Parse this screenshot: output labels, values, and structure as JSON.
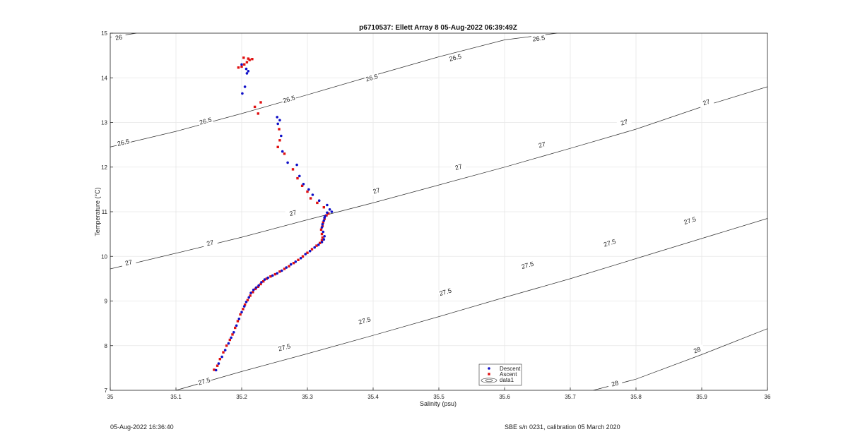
{
  "chart_data": {
    "type": "scatter",
    "title": "p6710537: Ellett Array 8 05-Aug-2022 06:39:49Z",
    "xlabel": "Salinity (psu)",
    "ylabel": "Temperature (°C)",
    "xlim": [
      35,
      36
    ],
    "ylim": [
      7,
      15
    ],
    "x_ticks": [
      "35",
      "35.1",
      "35.2",
      "35.3",
      "35.4",
      "35.5",
      "35.6",
      "35.7",
      "35.8",
      "35.9",
      "36"
    ],
    "y_ticks": [
      "7",
      "8",
      "9",
      "10",
      "11",
      "12",
      "13",
      "14",
      "15"
    ],
    "grid": true,
    "legend": {
      "placement": "bottom-center",
      "entries": [
        "Descent",
        "Ascent",
        "data1"
      ]
    },
    "contours": [
      {
        "level": "26",
        "line": [
          [
            35.0,
            14.91
          ],
          [
            35.04,
            15.0
          ]
        ],
        "labels": [
          [
            35.013,
            14.9
          ]
        ]
      },
      {
        "level": "26.5",
        "line": [
          [
            35.0,
            12.45
          ],
          [
            35.1,
            12.8
          ],
          [
            35.2,
            13.2
          ],
          [
            35.3,
            13.62
          ],
          [
            35.4,
            14.05
          ],
          [
            35.5,
            14.47
          ],
          [
            35.6,
            14.85
          ],
          [
            35.68,
            15.0
          ]
        ],
        "labels": [
          [
            35.02,
            12.55
          ],
          [
            35.145,
            13.03
          ],
          [
            35.272,
            13.52
          ],
          [
            35.398,
            14.0
          ],
          [
            35.525,
            14.45
          ],
          [
            35.652,
            14.88
          ]
        ]
      },
      {
        "level": "27",
        "line": [
          [
            35.0,
            9.72
          ],
          [
            35.1,
            10.07
          ],
          [
            35.2,
            10.43
          ],
          [
            35.3,
            10.82
          ],
          [
            35.4,
            11.2
          ],
          [
            35.5,
            11.6
          ],
          [
            35.6,
            12.0
          ],
          [
            35.7,
            12.42
          ],
          [
            35.8,
            12.85
          ],
          [
            35.9,
            13.35
          ],
          [
            36.0,
            13.8
          ]
        ],
        "labels": [
          [
            35.028,
            9.86
          ],
          [
            35.152,
            10.3
          ],
          [
            35.278,
            10.97
          ],
          [
            35.405,
            11.47
          ],
          [
            35.53,
            12.0
          ],
          [
            35.657,
            12.5
          ],
          [
            35.782,
            13.0
          ],
          [
            35.907,
            13.45
          ]
        ]
      },
      {
        "level": "27.5",
        "line": [
          [
            35.1,
            7.0
          ],
          [
            35.2,
            7.42
          ],
          [
            35.3,
            7.82
          ],
          [
            35.4,
            8.23
          ],
          [
            35.5,
            8.65
          ],
          [
            35.6,
            9.08
          ],
          [
            35.7,
            9.5
          ],
          [
            35.8,
            9.95
          ],
          [
            35.9,
            10.4
          ],
          [
            36.0,
            10.85
          ]
        ],
        "labels": [
          [
            35.143,
            7.2
          ],
          [
            35.265,
            7.96
          ],
          [
            35.387,
            8.56
          ],
          [
            35.51,
            9.2
          ],
          [
            35.635,
            9.8
          ],
          [
            35.76,
            10.3
          ],
          [
            35.882,
            10.8
          ]
        ]
      },
      {
        "level": "28",
        "line": [
          [
            35.735,
            7.0
          ],
          [
            35.8,
            7.25
          ],
          [
            35.9,
            7.8
          ],
          [
            36.0,
            8.38
          ]
        ],
        "labels": [
          [
            35.768,
            7.15
          ],
          [
            35.893,
            7.9
          ]
        ]
      }
    ],
    "series": [
      {
        "name": "Descent",
        "color": "#1010c8",
        "x": [
          35.161,
          35.165,
          35.17,
          35.175,
          35.18,
          35.184,
          35.188,
          35.192,
          35.196,
          35.2,
          35.204,
          35.207,
          35.211,
          35.214,
          35.218,
          35.222,
          35.226,
          35.23,
          35.235,
          35.24,
          35.247,
          35.254,
          35.261,
          35.268,
          35.275,
          35.282,
          35.29,
          35.297,
          35.304,
          35.311,
          35.317,
          35.322,
          35.325,
          35.326,
          35.324,
          35.322,
          35.323,
          35.325,
          35.326,
          35.327,
          35.33,
          35.334,
          35.337,
          35.33,
          35.318,
          35.308,
          35.302,
          35.294,
          35.288,
          35.284,
          35.27,
          35.262,
          35.26,
          35.255,
          35.258,
          35.254,
          35.208,
          35.21,
          35.207,
          35.205,
          35.201,
          35.2
        ],
        "y": [
          7.45,
          7.6,
          7.75,
          7.9,
          8.05,
          8.18,
          8.3,
          8.45,
          8.6,
          8.75,
          8.88,
          8.98,
          9.08,
          9.18,
          9.25,
          9.3,
          9.35,
          9.42,
          9.48,
          9.52,
          9.57,
          9.62,
          9.68,
          9.75,
          9.82,
          9.88,
          9.96,
          10.05,
          10.12,
          10.2,
          10.26,
          10.32,
          10.38,
          10.45,
          10.55,
          10.65,
          10.72,
          10.8,
          10.87,
          10.9,
          10.98,
          11.05,
          11.0,
          11.15,
          11.25,
          11.38,
          11.5,
          11.62,
          11.8,
          12.05,
          12.1,
          12.35,
          12.7,
          12.97,
          13.05,
          13.12,
          14.1,
          14.15,
          14.2,
          13.8,
          13.65,
          14.3
        ]
      },
      {
        "name": "Ascent",
        "color": "#e01010",
        "x": [
          35.158,
          35.163,
          35.167,
          35.172,
          35.177,
          35.182,
          35.186,
          35.19,
          35.194,
          35.198,
          35.202,
          35.205,
          35.209,
          35.213,
          35.217,
          35.221,
          35.225,
          35.229,
          35.233,
          35.238,
          35.244,
          35.251,
          35.258,
          35.265,
          35.272,
          35.279,
          35.286,
          35.293,
          35.3,
          35.307,
          35.314,
          35.319,
          35.322,
          35.323,
          35.322,
          35.321,
          35.323,
          35.324,
          35.326,
          35.329,
          35.332,
          35.325,
          35.315,
          35.305,
          35.3,
          35.292,
          35.285,
          35.278,
          35.265,
          35.255,
          35.258,
          35.257,
          35.229,
          35.225,
          35.22,
          35.195,
          35.2,
          35.204,
          35.208,
          35.212,
          35.216,
          35.203,
          35.21
        ],
        "y": [
          7.46,
          7.55,
          7.7,
          7.85,
          8.0,
          8.13,
          8.25,
          8.4,
          8.55,
          8.7,
          8.82,
          8.92,
          9.02,
          9.12,
          9.2,
          9.27,
          9.32,
          9.38,
          9.44,
          9.5,
          9.55,
          9.6,
          9.66,
          9.72,
          9.78,
          9.85,
          9.92,
          10.0,
          10.08,
          10.16,
          10.24,
          10.3,
          10.36,
          10.42,
          10.5,
          10.6,
          10.68,
          10.76,
          10.84,
          10.92,
          10.96,
          11.1,
          11.2,
          11.3,
          11.45,
          11.58,
          11.75,
          11.95,
          12.3,
          12.45,
          12.6,
          12.85,
          13.45,
          13.2,
          13.35,
          14.23,
          14.25,
          14.3,
          14.35,
          14.4,
          14.42,
          14.45,
          14.43
        ]
      }
    ]
  },
  "footer": {
    "left": "05-Aug-2022 16:36:40",
    "right": "SBE s/n 0231, calibration 05 March 2020"
  }
}
